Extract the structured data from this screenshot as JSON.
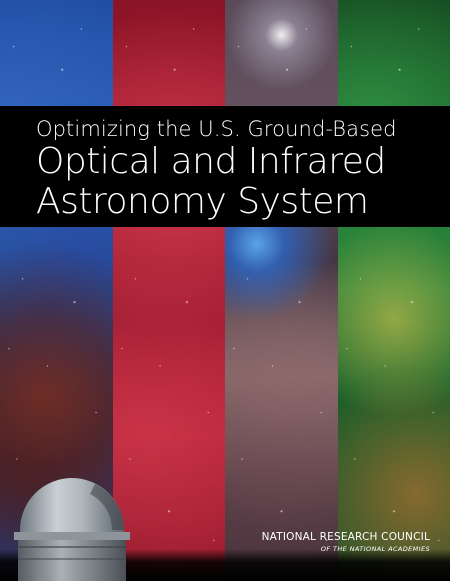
{
  "cover": {
    "title_line_1": "Optimizing the U.S. Ground-Based",
    "title_line_2": "Optical and Infrared",
    "title_line_3": "Astronomy System",
    "publisher_name": "NATIONAL RESEARCH COUNCIL",
    "publisher_sub": "OF THE NATIONAL ACADEMIES",
    "strip_colors": [
      "#2a5fb8",
      "#b52035",
      "#6b5560",
      "#27803a"
    ],
    "dome_icon": "observatory-dome-icon"
  }
}
